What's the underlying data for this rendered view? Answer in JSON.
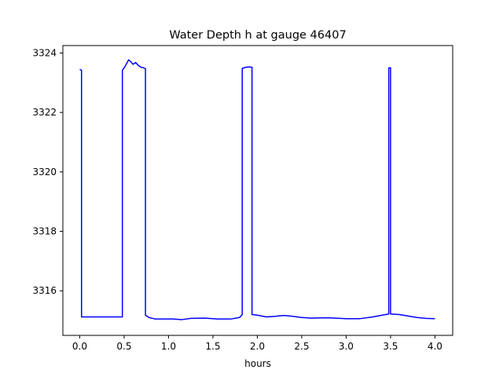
{
  "chart_data": {
    "type": "line",
    "title": "Water Depth h at gauge 46407",
    "xlabel": "hours",
    "ylabel": "",
    "xlim": [
      -0.19,
      4.2
    ],
    "ylim": [
      3314.5,
      3324.25
    ],
    "xticks": [
      0.0,
      0.5,
      1.0,
      1.5,
      2.0,
      2.5,
      3.0,
      3.5,
      4.0
    ],
    "xtick_labels": [
      "0.0",
      "0.5",
      "1.0",
      "1.5",
      "2.0",
      "2.5",
      "3.0",
      "3.5",
      "4.0"
    ],
    "yticks": [
      3316,
      3318,
      3320,
      3322,
      3324
    ],
    "ytick_labels": [
      "3316",
      "3318",
      "3320",
      "3322",
      "3324"
    ],
    "grid": false,
    "series": [
      {
        "name": "",
        "color": "#0000ff",
        "x": [
          0.0,
          0.02,
          0.02,
          0.1,
          0.2,
          0.3,
          0.4,
          0.48,
          0.48,
          0.5,
          0.52,
          0.55,
          0.57,
          0.6,
          0.63,
          0.66,
          0.69,
          0.72,
          0.74,
          0.74,
          0.78,
          0.85,
          0.95,
          1.05,
          1.15,
          1.25,
          1.4,
          1.55,
          1.7,
          1.8,
          1.83,
          1.83,
          1.87,
          1.91,
          1.94,
          1.94,
          2.0,
          2.1,
          2.2,
          2.3,
          2.4,
          2.5,
          2.6,
          2.8,
          3.0,
          3.15,
          3.3,
          3.48,
          3.48,
          3.49,
          3.5,
          3.5,
          3.6,
          3.7,
          3.8,
          3.9,
          4.0
        ],
        "y": [
          3323.45,
          3323.42,
          3315.12,
          3315.12,
          3315.12,
          3315.12,
          3315.12,
          3315.12,
          3323.42,
          3323.5,
          3323.6,
          3323.77,
          3323.72,
          3323.62,
          3323.68,
          3323.58,
          3323.52,
          3323.5,
          3323.47,
          3315.18,
          3315.1,
          3315.05,
          3315.05,
          3315.05,
          3315.03,
          3315.07,
          3315.08,
          3315.05,
          3315.05,
          3315.1,
          3315.2,
          3323.48,
          3323.52,
          3323.53,
          3323.52,
          3315.2,
          3315.18,
          3315.12,
          3315.14,
          3315.17,
          3315.14,
          3315.1,
          3315.08,
          3315.09,
          3315.06,
          3315.06,
          3315.12,
          3315.22,
          3323.5,
          3323.5,
          3323.5,
          3315.22,
          3315.2,
          3315.15,
          3315.1,
          3315.07,
          3315.06
        ]
      }
    ]
  }
}
